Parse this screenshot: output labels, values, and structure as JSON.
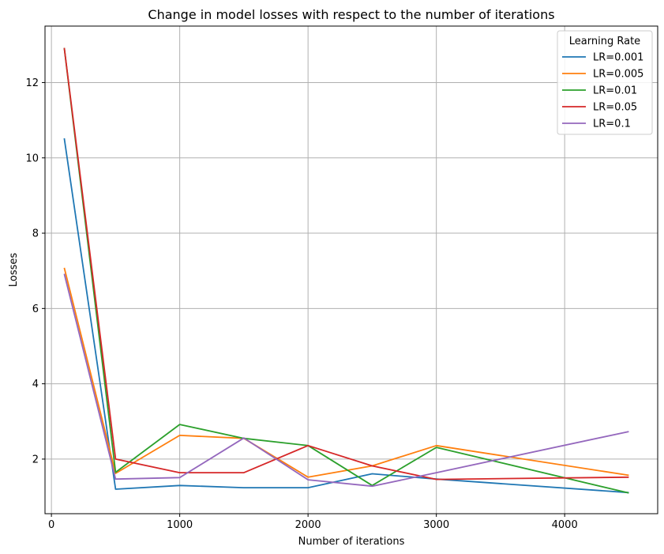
{
  "chart_data": {
    "type": "line",
    "title": "Change in model losses with respect to the number of iterations",
    "xlabel": "Number of iterations",
    "ylabel": "Losses",
    "x": [
      100,
      500,
      1000,
      1500,
      2000,
      2500,
      3000,
      4500
    ],
    "xlim": [
      -50,
      4725
    ],
    "ylim": [
      0.55,
      13.5
    ],
    "xticks": [
      0,
      1000,
      2000,
      3000,
      4000
    ],
    "yticks": [
      2,
      4,
      6,
      8,
      10,
      12
    ],
    "grid": true,
    "legend": {
      "title": "Learning Rate",
      "placement": "top-right"
    },
    "series": [
      {
        "name": "LR=0.001",
        "color": "#1f77b4",
        "values": [
          10.52,
          1.2,
          1.3,
          1.24,
          1.24,
          1.61,
          1.47,
          1.11
        ]
      },
      {
        "name": "LR=0.005",
        "color": "#ff7f0e",
        "values": [
          7.08,
          1.62,
          2.63,
          2.55,
          1.52,
          1.82,
          2.36,
          1.57
        ]
      },
      {
        "name": "LR=0.01",
        "color": "#2ca02c",
        "values": [
          12.92,
          1.65,
          2.92,
          2.55,
          2.36,
          1.3,
          2.31,
          1.1
        ]
      },
      {
        "name": "LR=0.05",
        "color": "#d62728",
        "values": [
          12.92,
          2.0,
          1.64,
          1.64,
          2.36,
          1.82,
          1.46,
          1.52
        ]
      },
      {
        "name": "LR=0.1",
        "color": "#9467bd",
        "values": [
          6.92,
          1.47,
          1.51,
          2.56,
          1.45,
          1.28,
          1.64,
          2.73
        ]
      }
    ]
  }
}
